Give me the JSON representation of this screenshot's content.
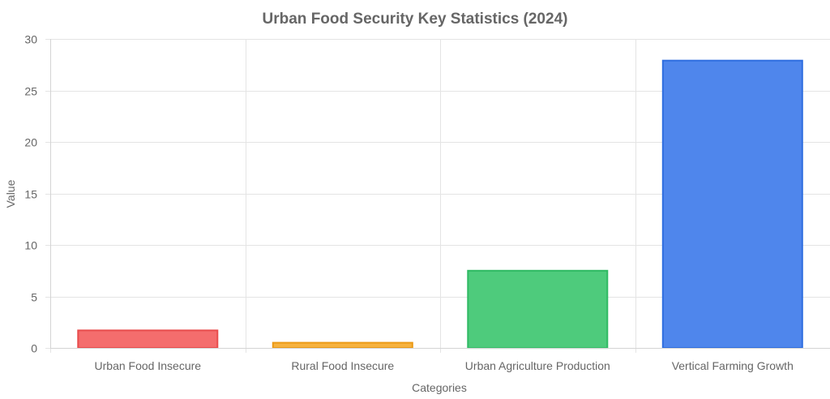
{
  "chart_data": {
    "type": "bar",
    "title": "Urban Food Security Key Statistics (2024)",
    "xlabel": "Categories",
    "ylabel": "Value",
    "categories": [
      "Urban Food Insecure",
      "Rural Food Insecure",
      "Urban Agriculture Production",
      "Vertical Farming Growth"
    ],
    "values": [
      1.7,
      0.5,
      7.5,
      27.9
    ],
    "ylim": [
      0,
      30
    ],
    "yticks": [
      0,
      5,
      10,
      15,
      20,
      25,
      30
    ],
    "grid": true,
    "legend": "none",
    "colors": {
      "fills": [
        "#f46d6d",
        "#f6b23f",
        "#4ecb7c",
        "#4f86ec"
      ],
      "borders": [
        "#e84c4c",
        "#eb9a17",
        "#2fba63",
        "#2f6ee0"
      ]
    }
  }
}
